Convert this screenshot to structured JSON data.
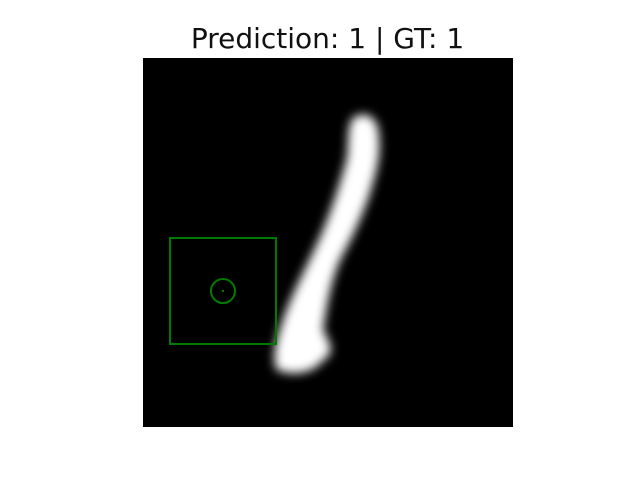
{
  "figure": {
    "title": "Prediction: 1 | GT: 1",
    "image_description_icon": "handwritten-digit-image",
    "background_color": "#000000",
    "stroke_color": "#ffffff",
    "annotation_color": "#008000"
  }
}
